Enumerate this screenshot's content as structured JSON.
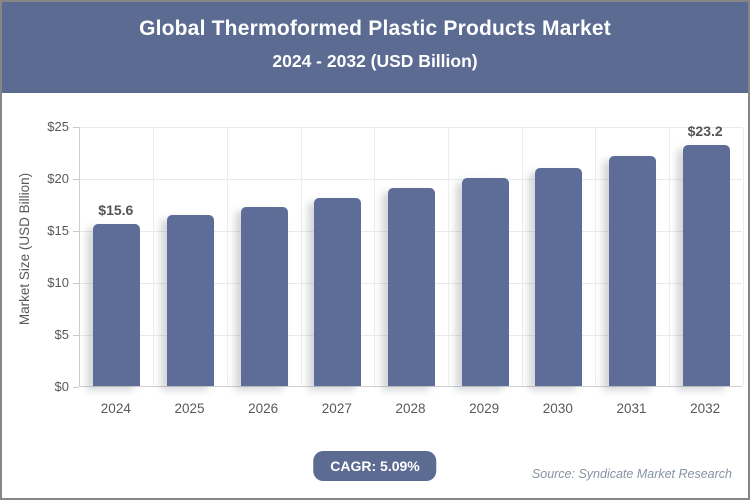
{
  "header": {
    "title": "Global Thermoformed Plastic Products Market",
    "subtitle": "2024 - 2032 (USD Billion)"
  },
  "chart_data": {
    "type": "bar",
    "title": "Global Thermoformed Plastic Products Market 2024 - 2032 (USD Billion)",
    "categories": [
      "2024",
      "2025",
      "2026",
      "2027",
      "2028",
      "2029",
      "2030",
      "2031",
      "2032"
    ],
    "values": [
      15.6,
      16.4,
      17.2,
      18.1,
      19.0,
      20.0,
      21.0,
      22.1,
      23.2
    ],
    "value_labels": [
      "$15.6",
      "",
      "",
      "",
      "",
      "",
      "",
      "",
      "$23.2"
    ],
    "xlabel": "",
    "ylabel": "Market Size (USD Billion)",
    "ylim": [
      0,
      25
    ],
    "ytick_values": [
      0,
      5,
      10,
      15,
      20,
      25
    ],
    "yticks": [
      "$0",
      "$5",
      "$10",
      "$15",
      "$20",
      "$25"
    ],
    "grid": true,
    "legend": "none",
    "bar_color": "#5d6d97",
    "gridline_color": "#e9e9e9",
    "axis_text_color": "#595959",
    "header_color": "#5b6b92"
  },
  "footer": {
    "cagr_label": "CAGR: 5.09%",
    "source": "Source: Syndicate Market Research"
  }
}
